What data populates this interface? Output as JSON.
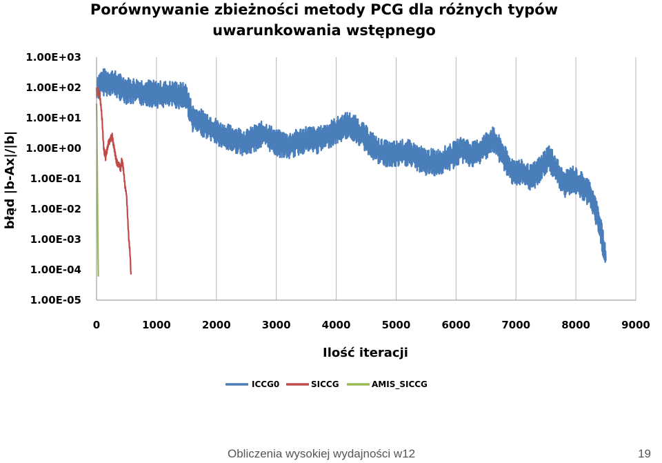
{
  "slide": {
    "footer_text": "Obliczenia wysokiej wydajności w12",
    "page_number": "19"
  },
  "chart_data": {
    "type": "line",
    "title": "Porównywanie zbieżności metody PCG dla różnych typów uwarunkowania wstępnego",
    "title_lines": [
      "Porównywanie zbieżności metody PCG dla różnych typów",
      "uwarunkowania wstępnego"
    ],
    "xlabel": "Ilość iteracji",
    "ylabel": "błąd |b-Ax|/|b|",
    "xlim": [
      0,
      9000
    ],
    "ylim": [
      1e-05,
      1000
    ],
    "yscale": "log",
    "xticks": [
      "0",
      "1000",
      "2000",
      "3000",
      "4000",
      "5000",
      "6000",
      "7000",
      "8000",
      "9000"
    ],
    "yticks": [
      "1.00E+03",
      "1.00E+02",
      "1.00E+01",
      "1.00E+00",
      "1.00E-01",
      "1.00E-02",
      "1.00E-03",
      "1.00E-04",
      "1.00E-05"
    ],
    "grid": "vertical",
    "legend_position": "bottom",
    "series": [
      {
        "name": "ICCG0",
        "color": "#4a7ebb",
        "noise_decades": 0.45,
        "x": [
          0,
          100,
          250,
          500,
          800,
          1000,
          1300,
          1500,
          1600,
          1900,
          2100,
          2300,
          2500,
          2700,
          2800,
          3000,
          3200,
          3500,
          3700,
          3900,
          4200,
          4350,
          4500,
          4700,
          4900,
          5100,
          5200,
          5500,
          5700,
          5900,
          6100,
          6300,
          6450,
          6600,
          6650,
          6750,
          6900,
          7100,
          7250,
          7400,
          7550,
          7650,
          7800,
          7950,
          8100,
          8250,
          8400,
          8500
        ],
        "y": [
          100,
          150,
          150,
          80,
          70,
          60,
          60,
          50,
          10,
          5,
          2.5,
          2.0,
          1.5,
          2.5,
          3.0,
          1.5,
          1.2,
          2.0,
          1.8,
          3.0,
          6.0,
          4.0,
          2.0,
          0.8,
          0.6,
          0.7,
          0.7,
          0.35,
          0.35,
          0.5,
          0.9,
          0.6,
          1.0,
          2.0,
          1.5,
          0.8,
          0.2,
          0.15,
          0.1,
          0.2,
          0.5,
          0.25,
          0.06,
          0.1,
          0.06,
          0.03,
          0.003,
          0.0002
        ]
      },
      {
        "name": "SICCG",
        "color": "#be4b48",
        "noise_decades": 0.12,
        "x": [
          0,
          20,
          50,
          80,
          100,
          120,
          150,
          170,
          200,
          230,
          260,
          280,
          300,
          320,
          350,
          380,
          400,
          420,
          450,
          480,
          500,
          520,
          540,
          560,
          575
        ],
        "y": [
          50,
          80,
          60,
          20,
          5,
          1.0,
          0.5,
          0.8,
          1.5,
          2.0,
          2.5,
          1.5,
          0.8,
          0.5,
          0.3,
          0.3,
          0.2,
          0.4,
          0.2,
          0.05,
          0.03,
          0.005,
          0.001,
          0.0003,
          7e-05
        ]
      },
      {
        "name": "AMIS_SICCG",
        "color": "#98b954",
        "noise_decades": 0.05,
        "x": [
          0,
          3,
          6,
          9,
          12,
          15,
          18,
          21,
          25,
          30
        ],
        "y": [
          30,
          15,
          5,
          1.0,
          0.3,
          0.05,
          0.01,
          0.002,
          0.0003,
          6e-05
        ]
      }
    ]
  }
}
